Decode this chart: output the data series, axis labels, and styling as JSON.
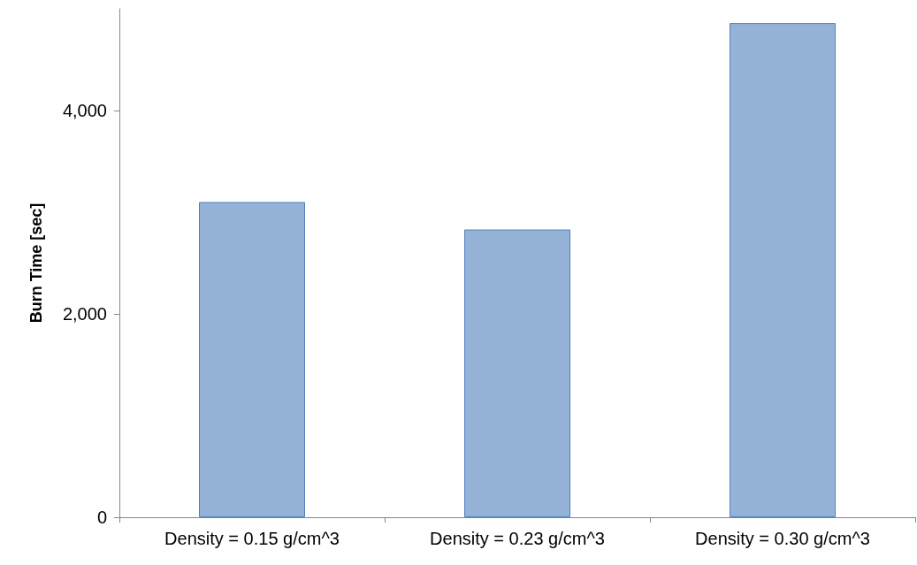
{
  "chart_data": {
    "type": "bar",
    "ylabel": "Burn Time [sec]",
    "categories": [
      "Density = 0.15 g/cm^3",
      "Density = 0.23 g/cm^3",
      "Density = 0.30 g/cm^3"
    ],
    "values": [
      3100,
      2830,
      4860
    ],
    "color": "#95b3d7",
    "ylim": [
      0,
      5000
    ],
    "yticks": [
      0,
      {
        "value": 2000,
        "label": "2,000"
      },
      {
        "value": 4000,
        "label": "4,000"
      }
    ],
    "grid": false
  }
}
